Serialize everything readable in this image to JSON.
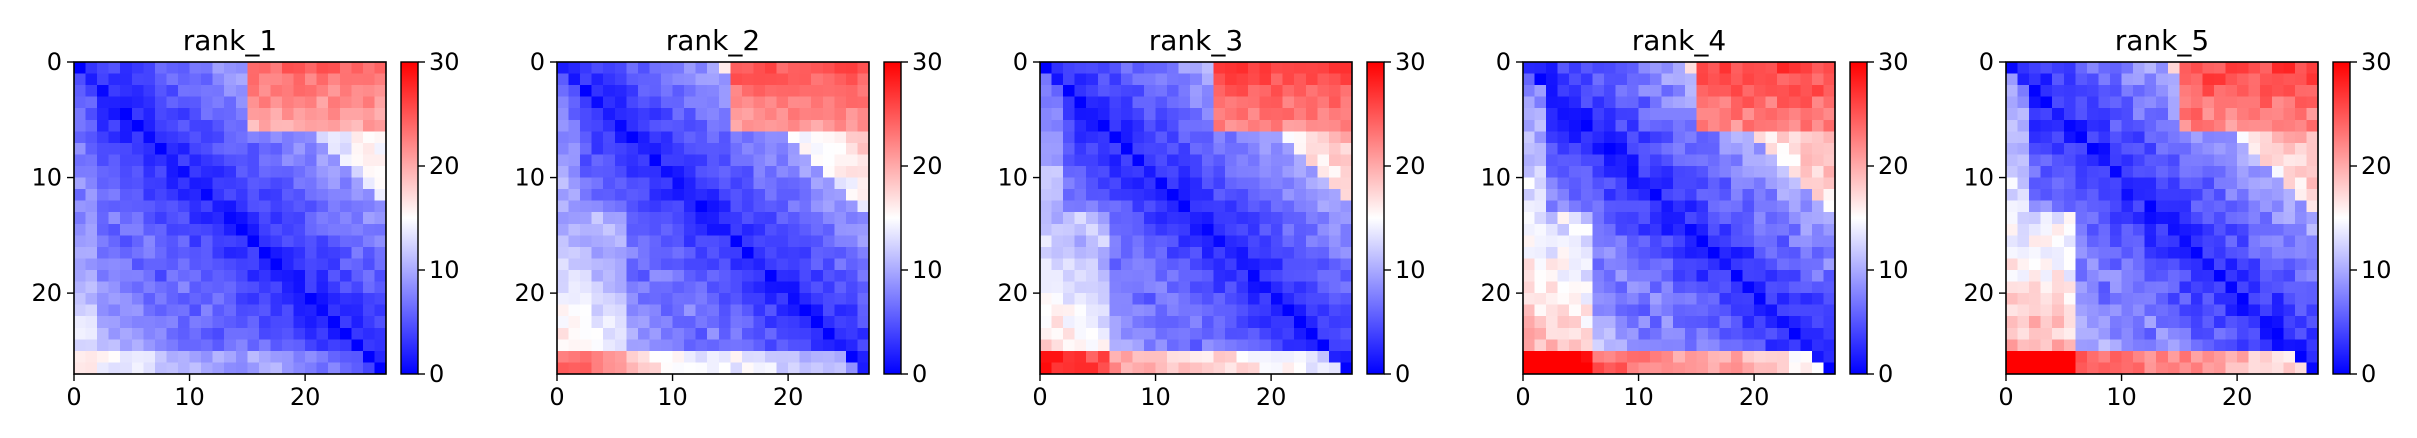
{
  "figure": {
    "colormap": "bwr",
    "colors": {
      "low": "#0000ff",
      "mid": "#ffffff",
      "high": "#ff0000"
    },
    "panel_titles": [
      "rank_1",
      "rank_2",
      "rank_3",
      "rank_4",
      "rank_5"
    ]
  },
  "chart_data": [
    {
      "type": "heatmap",
      "title": "rank_1",
      "size": 27,
      "xlim": [
        0,
        27
      ],
      "ylim": [
        27,
        0
      ],
      "xticks": [
        0,
        10,
        20
      ],
      "yticks": [
        0,
        10,
        20
      ],
      "colorbar": {
        "range": [
          0,
          30
        ],
        "ticks": [
          0,
          10,
          20,
          30
        ]
      },
      "approx_model": {
        "base": 2,
        "slope": 0.5,
        "upper_cap": 28,
        "upper_far_threshold": 14,
        "upper_far_extra": 4,
        "edge_extra": 3,
        "lower_row_boost": 0,
        "lower_col_boost": 0,
        "noise": 1.5
      }
    },
    {
      "type": "heatmap",
      "title": "rank_2",
      "size": 27,
      "xlim": [
        0,
        27
      ],
      "ylim": [
        27,
        0
      ],
      "xticks": [
        0,
        10,
        20
      ],
      "yticks": [
        0,
        10,
        20
      ],
      "colorbar": {
        "range": [
          0,
          30
        ],
        "ticks": [
          0,
          10,
          20,
          30
        ]
      },
      "approx_model": {
        "base": 2,
        "slope": 0.55,
        "upper_cap": 29,
        "upper_far_threshold": 13,
        "upper_far_extra": 5,
        "edge_extra": 5,
        "lower_row_boost": 2,
        "lower_col_boost": 3,
        "noise": 1.5
      }
    },
    {
      "type": "heatmap",
      "title": "rank_3",
      "size": 27,
      "xlim": [
        0,
        27
      ],
      "ylim": [
        27,
        0
      ],
      "xticks": [
        0,
        10,
        20
      ],
      "yticks": [
        0,
        10,
        20
      ],
      "colorbar": {
        "range": [
          0,
          30
        ],
        "ticks": [
          0,
          10,
          20,
          30
        ]
      },
      "approx_model": {
        "base": 2,
        "slope": 0.55,
        "upper_cap": 30,
        "upper_far_threshold": 14,
        "upper_far_extra": 6,
        "edge_extra": 7,
        "lower_row_boost": 3,
        "lower_col_boost": 4,
        "noise": 1.5
      }
    },
    {
      "type": "heatmap",
      "title": "rank_4",
      "size": 27,
      "xlim": [
        0,
        27
      ],
      "ylim": [
        27,
        0
      ],
      "xticks": [
        0,
        10,
        20
      ],
      "yticks": [
        0,
        10,
        20
      ],
      "colorbar": {
        "range": [
          0,
          30
        ],
        "ticks": [
          0,
          10,
          20,
          30
        ]
      },
      "approx_model": {
        "base": 2,
        "slope": 0.6,
        "upper_cap": 30,
        "upper_far_threshold": 13,
        "upper_far_extra": 6,
        "edge_extra": 9,
        "lower_row_boost": 4,
        "lower_col_boost": 6,
        "noise": 2
      }
    },
    {
      "type": "heatmap",
      "title": "rank_5",
      "size": 27,
      "xlim": [
        0,
        27
      ],
      "ylim": [
        27,
        0
      ],
      "xticks": [
        0,
        10,
        20
      ],
      "yticks": [
        0,
        10,
        20
      ],
      "colorbar": {
        "range": [
          0,
          30
        ],
        "ticks": [
          0,
          10,
          20,
          30
        ]
      },
      "approx_model": {
        "base": 2,
        "slope": 0.6,
        "upper_cap": 30,
        "upper_far_threshold": 13,
        "upper_far_extra": 6,
        "edge_extra": 9,
        "lower_row_boost": 5,
        "lower_col_boost": 7,
        "noise": 2
      }
    }
  ]
}
